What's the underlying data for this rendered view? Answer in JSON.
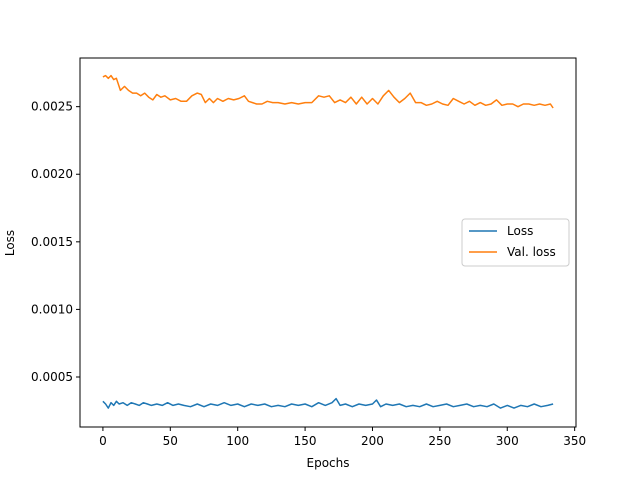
{
  "chart_data": {
    "type": "line",
    "xlabel": "Epochs",
    "ylabel": "Loss",
    "xlim": [
      -17,
      351
    ],
    "ylim": [
      0.00013,
      0.00286
    ],
    "xticks": [
      0,
      50,
      100,
      150,
      200,
      250,
      300,
      350
    ],
    "yticks": [
      0.0005,
      0.001,
      0.0015,
      0.002,
      0.0025
    ],
    "ytick_labels": [
      "0.0005",
      "0.0010",
      "0.0015",
      "0.0020",
      "0.0025"
    ],
    "xtick_labels": [
      "0",
      "50",
      "100",
      "150",
      "200",
      "250",
      "300",
      "350"
    ],
    "grid": false,
    "legend": "center-right",
    "series": [
      {
        "name": "Loss",
        "color": "#1f77b4",
        "x": [
          0,
          2,
          4,
          6,
          8,
          10,
          12,
          15,
          18,
          21,
          24,
          27,
          30,
          33,
          36,
          40,
          44,
          48,
          52,
          56,
          60,
          65,
          70,
          75,
          80,
          85,
          90,
          95,
          100,
          105,
          110,
          115,
          120,
          125,
          130,
          135,
          140,
          145,
          150,
          155,
          160,
          165,
          170,
          173,
          176,
          180,
          185,
          190,
          195,
          200,
          203,
          206,
          210,
          215,
          220,
          225,
          230,
          235,
          240,
          245,
          250,
          255,
          260,
          265,
          270,
          275,
          280,
          285,
          290,
          295,
          300,
          305,
          310,
          315,
          320,
          325,
          330,
          334
        ],
        "y": [
          0.00032,
          0.0003,
          0.00027,
          0.00031,
          0.00029,
          0.00032,
          0.0003,
          0.00031,
          0.00029,
          0.00031,
          0.0003,
          0.00029,
          0.00031,
          0.0003,
          0.00029,
          0.0003,
          0.00029,
          0.00031,
          0.00029,
          0.0003,
          0.00029,
          0.00028,
          0.0003,
          0.00028,
          0.0003,
          0.00029,
          0.00031,
          0.00029,
          0.0003,
          0.00028,
          0.0003,
          0.00029,
          0.0003,
          0.00028,
          0.00029,
          0.00028,
          0.0003,
          0.00029,
          0.0003,
          0.00028,
          0.00031,
          0.00029,
          0.00031,
          0.00034,
          0.00029,
          0.0003,
          0.00028,
          0.0003,
          0.00029,
          0.0003,
          0.00033,
          0.00028,
          0.0003,
          0.00029,
          0.0003,
          0.00028,
          0.00029,
          0.00028,
          0.0003,
          0.00028,
          0.00029,
          0.0003,
          0.00028,
          0.00029,
          0.0003,
          0.00028,
          0.00029,
          0.00028,
          0.0003,
          0.00027,
          0.00029,
          0.00027,
          0.00029,
          0.00028,
          0.0003,
          0.00028,
          0.00029,
          0.0003
        ]
      },
      {
        "name": "Val. loss",
        "color": "#ff7f0e",
        "x": [
          0,
          2,
          4,
          6,
          8,
          10,
          13,
          16,
          19,
          22,
          25,
          28,
          31,
          34,
          37,
          40,
          43,
          46,
          50,
          54,
          58,
          62,
          66,
          70,
          73,
          76,
          79,
          82,
          85,
          89,
          93,
          97,
          101,
          105,
          108,
          111,
          114,
          118,
          122,
          126,
          130,
          135,
          140,
          145,
          150,
          155,
          160,
          164,
          168,
          172,
          176,
          180,
          184,
          188,
          192,
          196,
          200,
          204,
          208,
          212,
          216,
          220,
          224,
          228,
          232,
          236,
          240,
          244,
          248,
          252,
          256,
          260,
          264,
          268,
          272,
          276,
          280,
          284,
          288,
          292,
          296,
          300,
          304,
          308,
          312,
          316,
          320,
          324,
          328,
          332,
          334
        ],
        "y": [
          0.00272,
          0.00273,
          0.00271,
          0.00273,
          0.0027,
          0.00271,
          0.00262,
          0.00265,
          0.00262,
          0.0026,
          0.0026,
          0.00258,
          0.0026,
          0.00257,
          0.00255,
          0.00259,
          0.00257,
          0.00258,
          0.00255,
          0.00256,
          0.00254,
          0.00254,
          0.00258,
          0.0026,
          0.00259,
          0.00253,
          0.00256,
          0.00253,
          0.00256,
          0.00254,
          0.00256,
          0.00255,
          0.00256,
          0.00258,
          0.00254,
          0.00253,
          0.00252,
          0.00252,
          0.00254,
          0.00253,
          0.00253,
          0.00252,
          0.00253,
          0.00252,
          0.00253,
          0.00253,
          0.00258,
          0.00257,
          0.00258,
          0.00253,
          0.00255,
          0.00253,
          0.00257,
          0.00252,
          0.00257,
          0.00252,
          0.00256,
          0.00252,
          0.00258,
          0.00262,
          0.00257,
          0.00253,
          0.00256,
          0.0026,
          0.00253,
          0.00253,
          0.00251,
          0.00252,
          0.00254,
          0.00252,
          0.00251,
          0.00256,
          0.00254,
          0.00252,
          0.00254,
          0.00251,
          0.00253,
          0.00251,
          0.00252,
          0.00255,
          0.00251,
          0.00252,
          0.00252,
          0.0025,
          0.00252,
          0.00252,
          0.00251,
          0.00252,
          0.00251,
          0.00252,
          0.00249
        ]
      }
    ]
  }
}
